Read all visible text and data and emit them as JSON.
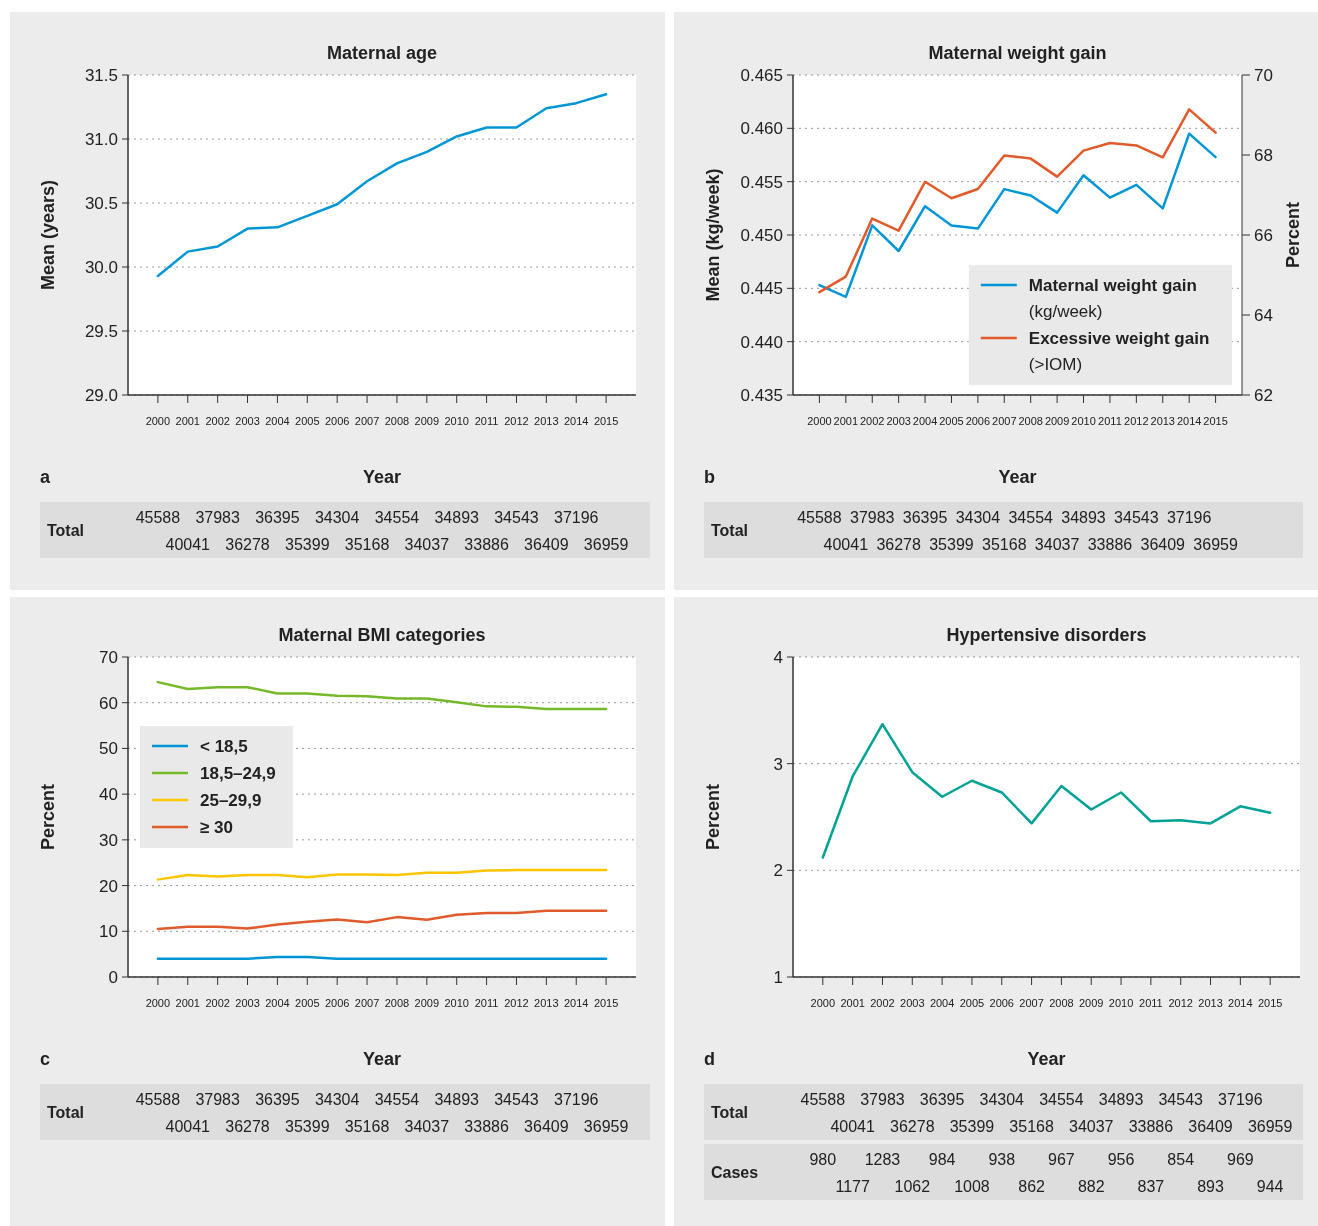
{
  "chart_data": [
    {
      "type": "line",
      "title": "Maternal age",
      "xlabel": "Year",
      "ylabel": "Mean (years)",
      "x": [
        2000,
        2001,
        2002,
        2003,
        2004,
        2005,
        2006,
        2007,
        2008,
        2009,
        2010,
        2011,
        2012,
        2013,
        2014,
        2015
      ],
      "xlim": [
        1999,
        2016
      ],
      "xticks": [
        2000,
        2001,
        2002,
        2003,
        2004,
        2005,
        2006,
        2007,
        2008,
        2009,
        2010,
        2011,
        2012,
        2013,
        2014,
        2015
      ],
      "ylim": [
        29,
        31.5
      ],
      "yticks": [
        {
          "value": 29,
          "label": "29.0"
        },
        29.5,
        {
          "value": 30,
          "label": "30.0"
        },
        30.5,
        {
          "value": 31,
          "label": "31.0"
        },
        31.5
      ],
      "grid": "y",
      "legend": false,
      "series": [
        {
          "color": "#0096d6",
          "values": [
            29.93,
            30.12,
            30.16,
            30.3,
            30.31,
            30.4,
            30.49,
            30.67,
            30.81,
            30.9,
            31.02,
            31.09,
            31.09,
            31.24,
            31.28,
            31.35
          ]
        }
      ],
      "annotations": [
        "a",
        "Total",
        "45588",
        "40041",
        "37983",
        "36278",
        "36395",
        "35399",
        "34304",
        "35168",
        "34554",
        "34037",
        "34893",
        "33886",
        "34543",
        "36409",
        "37196",
        "36959"
      ]
    },
    {
      "type": "line",
      "title": "Maternal weight gain",
      "xlabel": "Year",
      "ylabel": "Mean (kg/week)",
      "y2label": "Percent",
      "x": [
        2000,
        2001,
        2002,
        2003,
        2004,
        2005,
        2006,
        2007,
        2008,
        2009,
        2010,
        2011,
        2012,
        2013,
        2014,
        2015
      ],
      "xlim": [
        1999,
        2016
      ],
      "xticks": [
        2000,
        2001,
        2002,
        2003,
        2004,
        2005,
        2006,
        2007,
        2008,
        2009,
        2010,
        2011,
        2012,
        2013,
        2014,
        2015
      ],
      "ylim": [
        0.435,
        0.465
      ],
      "yticks": [
        0.435,
        {
          "value": 0.44,
          "label": "0.440"
        },
        0.445,
        {
          "value": 0.45,
          "label": "0.450"
        },
        0.455,
        {
          "value": 0.46,
          "label": "0.460"
        },
        0.465
      ],
      "y2lim": [
        62,
        70
      ],
      "y2ticks": [
        62,
        64,
        66,
        68,
        70
      ],
      "grid": "y",
      "legend": "bottom right",
      "series": [
        {
          "name": "Maternal weight gain (kg/week)",
          "color": "#0096d6",
          "values": [
            0.4453,
            0.4442,
            0.4509,
            0.4485,
            0.4527,
            0.4509,
            0.4506,
            0.4543,
            0.4537,
            0.4521,
            0.4556,
            0.4535,
            0.4547,
            0.4525,
            0.4595,
            0.4573
          ]
        },
        {
          "name": "Excessive weight gain (>IOM)",
          "color": "#e05a2b",
          "axis": "y2",
          "values": [
            64.57,
            64.96,
            66.41,
            66.11,
            67.33,
            66.92,
            67.15,
            67.99,
            67.91,
            67.46,
            68.11,
            68.3,
            68.24,
            67.94,
            69.14,
            68.56
          ]
        }
      ],
      "annotations": [
        "b",
        "Total",
        "45588",
        "40041",
        "37983",
        "36278",
        "36395",
        "35399",
        "34304",
        "35168",
        "34554",
        "34037",
        "34893",
        "33886",
        "34543",
        "36409",
        "37196",
        "36959"
      ]
    },
    {
      "type": "line",
      "title": "Maternal BMI categories",
      "xlabel": "Year",
      "ylabel": "Percent",
      "x": [
        2000,
        2001,
        2002,
        2003,
        2004,
        2005,
        2006,
        2007,
        2008,
        2009,
        2010,
        2011,
        2012,
        2013,
        2014,
        2015
      ],
      "xlim": [
        1999,
        2016
      ],
      "xticks": [
        2000,
        2001,
        2002,
        2003,
        2004,
        2005,
        2006,
        2007,
        2008,
        2009,
        2010,
        2011,
        2012,
        2013,
        2014,
        2015
      ],
      "ylim": [
        0,
        70
      ],
      "yticks": [
        0,
        10,
        20,
        30,
        40,
        50,
        60,
        70
      ],
      "grid": "y",
      "legend": "left",
      "series": [
        {
          "name": "< 18,5",
          "color": "#0096d6",
          "values": [
            4.0,
            4.0,
            4.0,
            4.0,
            4.4,
            4.4,
            4.0,
            4.0,
            4.0,
            4.0,
            4.0,
            4.0,
            4.0,
            4.0,
            4.0,
            4.0
          ]
        },
        {
          "name": "18,5–24,9",
          "color": "#76b82a",
          "values": [
            64.5,
            63.0,
            63.4,
            63.4,
            62.0,
            62.0,
            61.5,
            61.4,
            60.9,
            60.9,
            60.1,
            59.2,
            59.1,
            58.6,
            58.6,
            58.6
          ]
        },
        {
          "name": "25–29,9",
          "color": "#fdc400",
          "values": [
            21.3,
            22.3,
            22.0,
            22.3,
            22.3,
            21.8,
            22.4,
            22.4,
            22.3,
            22.8,
            22.8,
            23.3,
            23.4,
            23.4,
            23.4,
            23.4
          ]
        },
        {
          "name": "≥ 30",
          "color": "#e05a2b",
          "values": [
            10.5,
            11.0,
            11.0,
            10.6,
            11.5,
            12.1,
            12.6,
            12.0,
            13.1,
            12.5,
            13.6,
            14.0,
            14.0,
            14.5,
            14.5,
            14.5
          ]
        }
      ],
      "annotations": [
        "c",
        "Total",
        "45588",
        "40041",
        "37983",
        "36278",
        "36395",
        "35399",
        "34304",
        "35168",
        "34554",
        "34037",
        "34893",
        "33886",
        "34543",
        "36409",
        "37196",
        "36959"
      ]
    },
    {
      "type": "line",
      "title": "Hypertensive disorders",
      "xlabel": "Year",
      "ylabel": "Percent",
      "x": [
        2000,
        2001,
        2002,
        2003,
        2004,
        2005,
        2006,
        2007,
        2008,
        2009,
        2010,
        2011,
        2012,
        2013,
        2014,
        2015
      ],
      "xlim": [
        1999,
        2016
      ],
      "xticks": [
        2000,
        2001,
        2002,
        2003,
        2004,
        2005,
        2006,
        2007,
        2008,
        2009,
        2010,
        2011,
        2012,
        2013,
        2014,
        2015
      ],
      "ylim": [
        1,
        4
      ],
      "yticks": [
        1,
        2,
        3,
        4
      ],
      "grid": "y",
      "legend": false,
      "series": [
        {
          "color": "#00a295",
          "values": [
            2.12,
            2.88,
            3.37,
            2.92,
            2.69,
            2.84,
            2.73,
            2.44,
            2.79,
            2.57,
            2.73,
            2.46,
            2.47,
            2.44,
            2.6,
            2.54
          ]
        }
      ],
      "annotations": [
        "d",
        "Total",
        "45588",
        "40041",
        "37983",
        "36278",
        "36395",
        "35399",
        "34304",
        "35168",
        "34554",
        "34037",
        "34893",
        "33886",
        "34543",
        "36409",
        "37196",
        "36959",
        "Cases",
        "980",
        "1177",
        "1283",
        "1062",
        "984",
        "1008",
        "938",
        "862",
        "967",
        "882",
        "956",
        "837",
        "854",
        "893",
        "969",
        "944"
      ]
    }
  ]
}
